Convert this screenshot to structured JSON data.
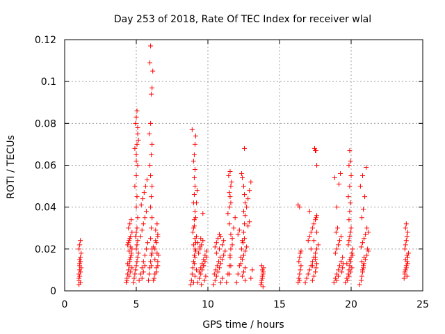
{
  "chart_data": {
    "type": "scatter",
    "title": "Day 253 of 2018, Rate Of TEC Index for receiver wlal",
    "xlabel": "GPS time / hours",
    "ylabel": "ROTI / TECUs",
    "xlim": [
      0,
      25
    ],
    "ylim": [
      0,
      0.12
    ],
    "xticks": [
      0,
      5,
      10,
      15,
      20,
      25
    ],
    "xtick_labels": [
      "0",
      "5",
      "10",
      "15",
      "20",
      "25"
    ],
    "yticks": [
      0,
      0.02,
      0.04,
      0.06,
      0.08,
      0.1,
      0.12
    ],
    "ytick_labels": [
      "0",
      "0.02",
      "0.04",
      "0.06",
      "0.08",
      "0.1",
      "0.12"
    ],
    "grid": true,
    "marker": "+",
    "color": "#ff0000",
    "series": [
      {
        "name": "ROTI",
        "x": [
          1.0,
          1.0,
          1.05,
          1.05,
          1.1,
          1.1,
          1.15,
          1.0,
          1.05,
          1.1,
          1.0,
          1.05,
          1.1,
          1.15,
          1.05,
          1.1,
          1.0,
          1.05,
          4.3,
          4.35,
          4.4,
          4.45,
          4.5,
          4.55,
          4.6,
          4.65,
          4.7,
          4.4,
          4.5,
          4.6,
          4.7,
          4.45,
          4.55,
          4.65,
          4.35,
          4.5,
          4.6,
          4.7,
          4.4,
          4.55,
          4.65,
          4.5,
          4.6,
          4.45,
          4.55,
          4.8,
          4.85,
          4.9,
          4.95,
          5.0,
          5.05,
          5.1,
          5.15,
          5.0,
          5.05,
          5.1,
          4.95,
          5.0,
          5.05,
          5.1,
          5.0,
          5.05,
          4.9,
          5.0,
          5.1,
          5.0,
          5.05,
          5.1,
          4.95,
          5.0,
          5.05,
          5.1,
          5.15,
          4.9,
          5.0,
          5.2,
          5.3,
          5.4,
          5.5,
          5.6,
          5.7,
          5.8,
          5.3,
          5.4,
          5.5,
          5.6,
          5.7,
          5.35,
          5.45,
          5.55,
          5.65,
          5.75,
          5.4,
          5.5,
          5.6,
          5.85,
          5.9,
          5.95,
          6.0,
          6.05,
          6.1,
          6.0,
          6.05,
          6.1,
          6.0,
          6.05,
          6.1,
          6.0,
          5.95,
          6.05,
          6.1,
          5.9,
          6.0,
          6.05,
          6.1,
          6.15,
          5.95,
          6.0,
          6.05,
          6.1,
          6.2,
          6.3,
          6.4,
          6.5,
          6.55,
          6.3,
          6.4,
          6.5,
          6.35,
          6.45,
          6.25,
          6.4,
          6.5,
          6.3,
          6.45,
          6.2,
          6.35,
          6.5,
          8.8,
          8.85,
          8.9,
          8.95,
          9.0,
          9.05,
          9.1,
          9.15,
          9.2,
          9.0,
          9.05,
          9.1,
          9.0,
          9.05,
          9.1,
          9.05,
          9.1,
          9.0,
          9.05,
          9.1,
          9.15,
          8.9,
          9.0,
          9.1,
          9.2,
          9.05,
          9.1,
          9.15,
          9.0,
          9.1,
          8.95,
          9.05,
          9.15,
          9.2,
          9.25,
          9.3,
          9.4,
          9.5,
          9.6,
          9.7,
          9.8,
          9.9,
          9.35,
          9.45,
          9.55,
          9.65,
          9.75,
          9.85,
          9.4,
          9.5,
          9.6,
          9.7,
          9.8,
          9.9,
          9.45,
          9.55,
          9.65,
          9.3,
          9.5,
          9.7,
          10.4,
          10.5,
          10.6,
          10.7,
          10.8,
          10.9,
          11.0,
          11.1,
          11.2,
          10.5,
          10.6,
          10.7,
          10.8,
          10.9,
          11.0,
          10.45,
          10.55,
          10.65,
          10.75,
          10.85,
          10.6,
          10.8,
          11.0,
          11.1,
          10.9,
          11.3,
          11.4,
          11.5,
          11.55,
          11.6,
          11.7,
          11.8,
          11.9,
          11.5,
          11.55,
          11.6,
          11.45,
          11.55,
          11.65,
          11.5,
          11.6,
          11.4,
          11.5,
          11.6,
          11.7,
          11.55,
          11.6,
          11.5,
          12.0,
          12.1,
          12.2,
          12.3,
          12.35,
          12.4,
          12.5,
          12.55,
          12.6,
          12.7,
          12.8,
          12.9,
          13.0,
          12.35,
          12.4,
          12.5,
          12.55,
          12.6,
          12.5,
          12.55,
          12.6,
          12.4,
          12.5,
          12.6,
          12.3,
          12.4,
          12.5,
          12.6,
          12.7,
          12.45,
          12.55,
          12.1,
          12.2,
          12.8,
          12.9,
          13.0,
          13.1,
          13.7,
          13.75,
          13.8,
          13.85,
          13.9,
          13.75,
          13.8,
          13.85,
          13.8,
          13.75,
          13.85,
          16.3,
          16.35,
          16.4,
          16.45,
          16.5,
          16.35,
          16.4,
          16.45,
          16.4,
          16.3,
          16.5,
          16.4,
          16.8,
          16.9,
          17.0,
          17.1,
          17.2,
          17.3,
          17.4,
          17.5,
          17.6,
          17.7,
          17.0,
          17.1,
          17.2,
          17.3,
          17.4,
          17.5,
          17.6,
          17.3,
          17.4,
          17.5,
          17.55,
          17.6,
          17.5,
          17.55,
          17.45,
          17.5,
          17.6,
          17.55,
          17.1,
          17.3,
          17.5,
          17.2,
          17.4,
          17.6,
          18.8,
          18.9,
          19.0,
          19.1,
          19.2,
          19.3,
          19.4,
          18.9,
          19.0,
          19.1,
          19.2,
          19.3,
          18.95,
          19.05,
          19.15,
          19.25,
          18.85,
          19.0,
          19.1,
          19.35,
          19.4,
          19.45,
          19.0,
          19.6,
          19.7,
          19.8,
          19.85,
          19.9,
          19.95,
          20.0,
          20.05,
          20.1,
          19.8,
          19.85,
          19.9,
          19.95,
          20.0,
          19.85,
          19.9,
          19.95,
          19.8,
          19.9,
          20.0,
          19.85,
          19.95,
          19.9,
          19.75,
          19.85,
          19.95,
          20.05,
          19.7,
          19.9,
          20.1,
          20.6,
          20.7,
          20.75,
          20.8,
          20.85,
          20.9,
          21.0,
          21.1,
          21.2,
          20.7,
          20.8,
          20.9,
          21.0,
          21.1,
          20.75,
          20.85,
          20.95,
          20.65,
          20.8,
          21.05,
          21.15,
          20.8,
          20.85,
          20.75,
          20.9,
          21.2,
          23.7,
          23.75,
          23.8,
          23.85,
          23.9,
          23.95,
          24.0,
          23.75,
          23.8,
          23.85,
          23.9,
          23.95,
          23.8,
          23.85,
          23.9,
          23.75,
          23.85,
          23.95,
          23.8,
          23.9
        ],
        "y": [
          0.006,
          0.008,
          0.01,
          0.012,
          0.014,
          0.016,
          0.018,
          0.02,
          0.022,
          0.024,
          0.005,
          0.007,
          0.009,
          0.011,
          0.013,
          0.004,
          0.003,
          0.015,
          0.004,
          0.006,
          0.008,
          0.01,
          0.012,
          0.014,
          0.016,
          0.018,
          0.02,
          0.022,
          0.024,
          0.026,
          0.028,
          0.03,
          0.032,
          0.034,
          0.005,
          0.007,
          0.009,
          0.011,
          0.013,
          0.015,
          0.017,
          0.019,
          0.021,
          0.023,
          0.025,
          0.004,
          0.006,
          0.008,
          0.01,
          0.012,
          0.014,
          0.016,
          0.018,
          0.02,
          0.022,
          0.024,
          0.026,
          0.028,
          0.03,
          0.035,
          0.04,
          0.045,
          0.05,
          0.055,
          0.06,
          0.065,
          0.07,
          0.075,
          0.08,
          0.083,
          0.086,
          0.078,
          0.072,
          0.068,
          0.062,
          0.005,
          0.008,
          0.011,
          0.014,
          0.017,
          0.02,
          0.023,
          0.026,
          0.029,
          0.032,
          0.035,
          0.038,
          0.041,
          0.044,
          0.047,
          0.05,
          0.053,
          0.006,
          0.009,
          0.012,
          0.005,
          0.008,
          0.011,
          0.014,
          0.017,
          0.02,
          0.025,
          0.03,
          0.035,
          0.04,
          0.045,
          0.05,
          0.055,
          0.06,
          0.065,
          0.07,
          0.075,
          0.08,
          0.094,
          0.097,
          0.105,
          0.109,
          0.117,
          0.012,
          0.018,
          0.005,
          0.008,
          0.011,
          0.014,
          0.017,
          0.02,
          0.023,
          0.026,
          0.029,
          0.032,
          0.006,
          0.009,
          0.012,
          0.015,
          0.018,
          0.021,
          0.024,
          0.027,
          0.003,
          0.005,
          0.008,
          0.011,
          0.014,
          0.017,
          0.02,
          0.023,
          0.026,
          0.03,
          0.034,
          0.038,
          0.042,
          0.046,
          0.05,
          0.054,
          0.058,
          0.062,
          0.065,
          0.07,
          0.074,
          0.077,
          0.004,
          0.007,
          0.01,
          0.013,
          0.016,
          0.019,
          0.022,
          0.025,
          0.028,
          0.031,
          0.035,
          0.042,
          0.048,
          0.004,
          0.006,
          0.008,
          0.01,
          0.012,
          0.014,
          0.016,
          0.018,
          0.02,
          0.022,
          0.024,
          0.005,
          0.007,
          0.009,
          0.011,
          0.013,
          0.015,
          0.017,
          0.019,
          0.021,
          0.003,
          0.037,
          0.023,
          0.025,
          0.012,
          0.003,
          0.005,
          0.007,
          0.009,
          0.011,
          0.013,
          0.015,
          0.017,
          0.019,
          0.021,
          0.023,
          0.025,
          0.027,
          0.004,
          0.006,
          0.008,
          0.01,
          0.012,
          0.014,
          0.016,
          0.018,
          0.02,
          0.022,
          0.024,
          0.026,
          0.004,
          0.008,
          0.012,
          0.016,
          0.02,
          0.025,
          0.03,
          0.035,
          0.04,
          0.045,
          0.05,
          0.055,
          0.057,
          0.052,
          0.047,
          0.042,
          0.037,
          0.032,
          0.027,
          0.022,
          0.017,
          0.012,
          0.008,
          0.004,
          0.008,
          0.012,
          0.016,
          0.02,
          0.024,
          0.028,
          0.032,
          0.036,
          0.04,
          0.044,
          0.048,
          0.052,
          0.056,
          0.054,
          0.05,
          0.046,
          0.042,
          0.038,
          0.068,
          0.005,
          0.007,
          0.009,
          0.011,
          0.013,
          0.015,
          0.017,
          0.019,
          0.021,
          0.023,
          0.025,
          0.027,
          0.029,
          0.031,
          0.033,
          0.006,
          0.01,
          0.003,
          0.005,
          0.007,
          0.009,
          0.011,
          0.004,
          0.006,
          0.008,
          0.01,
          0.012,
          0.002,
          0.004,
          0.006,
          0.008,
          0.01,
          0.012,
          0.014,
          0.016,
          0.018,
          0.04,
          0.041,
          0.019,
          0.005,
          0.004,
          0.006,
          0.008,
          0.01,
          0.012,
          0.014,
          0.016,
          0.018,
          0.02,
          0.022,
          0.024,
          0.026,
          0.028,
          0.03,
          0.032,
          0.034,
          0.036,
          0.005,
          0.007,
          0.009,
          0.011,
          0.013,
          0.015,
          0.067,
          0.068,
          0.067,
          0.06,
          0.035,
          0.038,
          0.012,
          0.016,
          0.02,
          0.024,
          0.028,
          0.004,
          0.006,
          0.008,
          0.01,
          0.012,
          0.014,
          0.016,
          0.018,
          0.02,
          0.022,
          0.024,
          0.026,
          0.028,
          0.03,
          0.051,
          0.056,
          0.054,
          0.005,
          0.007,
          0.009,
          0.011,
          0.013,
          0.04,
          0.004,
          0.006,
          0.008,
          0.01,
          0.012,
          0.014,
          0.016,
          0.018,
          0.02,
          0.022,
          0.024,
          0.026,
          0.028,
          0.03,
          0.034,
          0.038,
          0.042,
          0.045,
          0.05,
          0.055,
          0.06,
          0.062,
          0.067,
          0.005,
          0.007,
          0.009,
          0.011,
          0.013,
          0.015,
          0.017,
          0.003,
          0.005,
          0.007,
          0.009,
          0.011,
          0.013,
          0.015,
          0.017,
          0.019,
          0.021,
          0.023,
          0.025,
          0.027,
          0.03,
          0.035,
          0.039,
          0.045,
          0.05,
          0.055,
          0.059,
          0.02,
          0.01,
          0.012,
          0.014,
          0.016,
          0.028,
          0.006,
          0.008,
          0.01,
          0.012,
          0.014,
          0.016,
          0.018,
          0.02,
          0.022,
          0.024,
          0.026,
          0.028,
          0.03,
          0.032,
          0.007,
          0.009,
          0.011,
          0.013,
          0.015,
          0.017
        ]
      }
    ]
  }
}
